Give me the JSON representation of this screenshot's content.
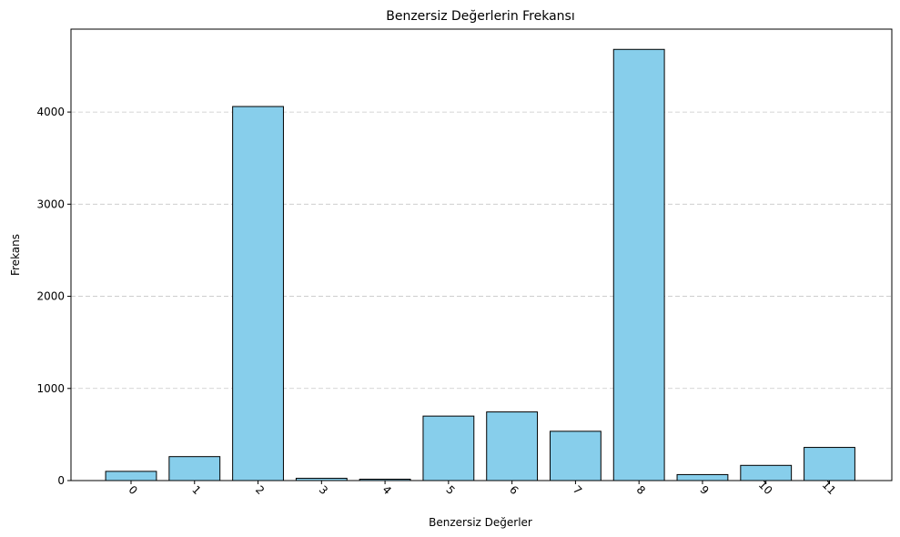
{
  "chart_data": {
    "type": "bar",
    "title": "Benzersiz Değerlerin Frekansı",
    "xlabel": "Benzersiz Değerler",
    "ylabel": "Frekans",
    "categories": [
      "0",
      "1",
      "2",
      "3",
      "4",
      "5",
      "6",
      "7",
      "8",
      "9",
      "10",
      "11"
    ],
    "values": [
      100,
      260,
      4060,
      25,
      15,
      700,
      745,
      535,
      4680,
      65,
      165,
      360
    ],
    "ylim": [
      0,
      4900
    ],
    "yticks": [
      "0",
      "1000",
      "2000",
      "3000",
      "4000"
    ],
    "grid": "y-dashed",
    "bar_color": "#87CEEB",
    "edge_color": "#000000",
    "xtick_rotation": 45
  }
}
